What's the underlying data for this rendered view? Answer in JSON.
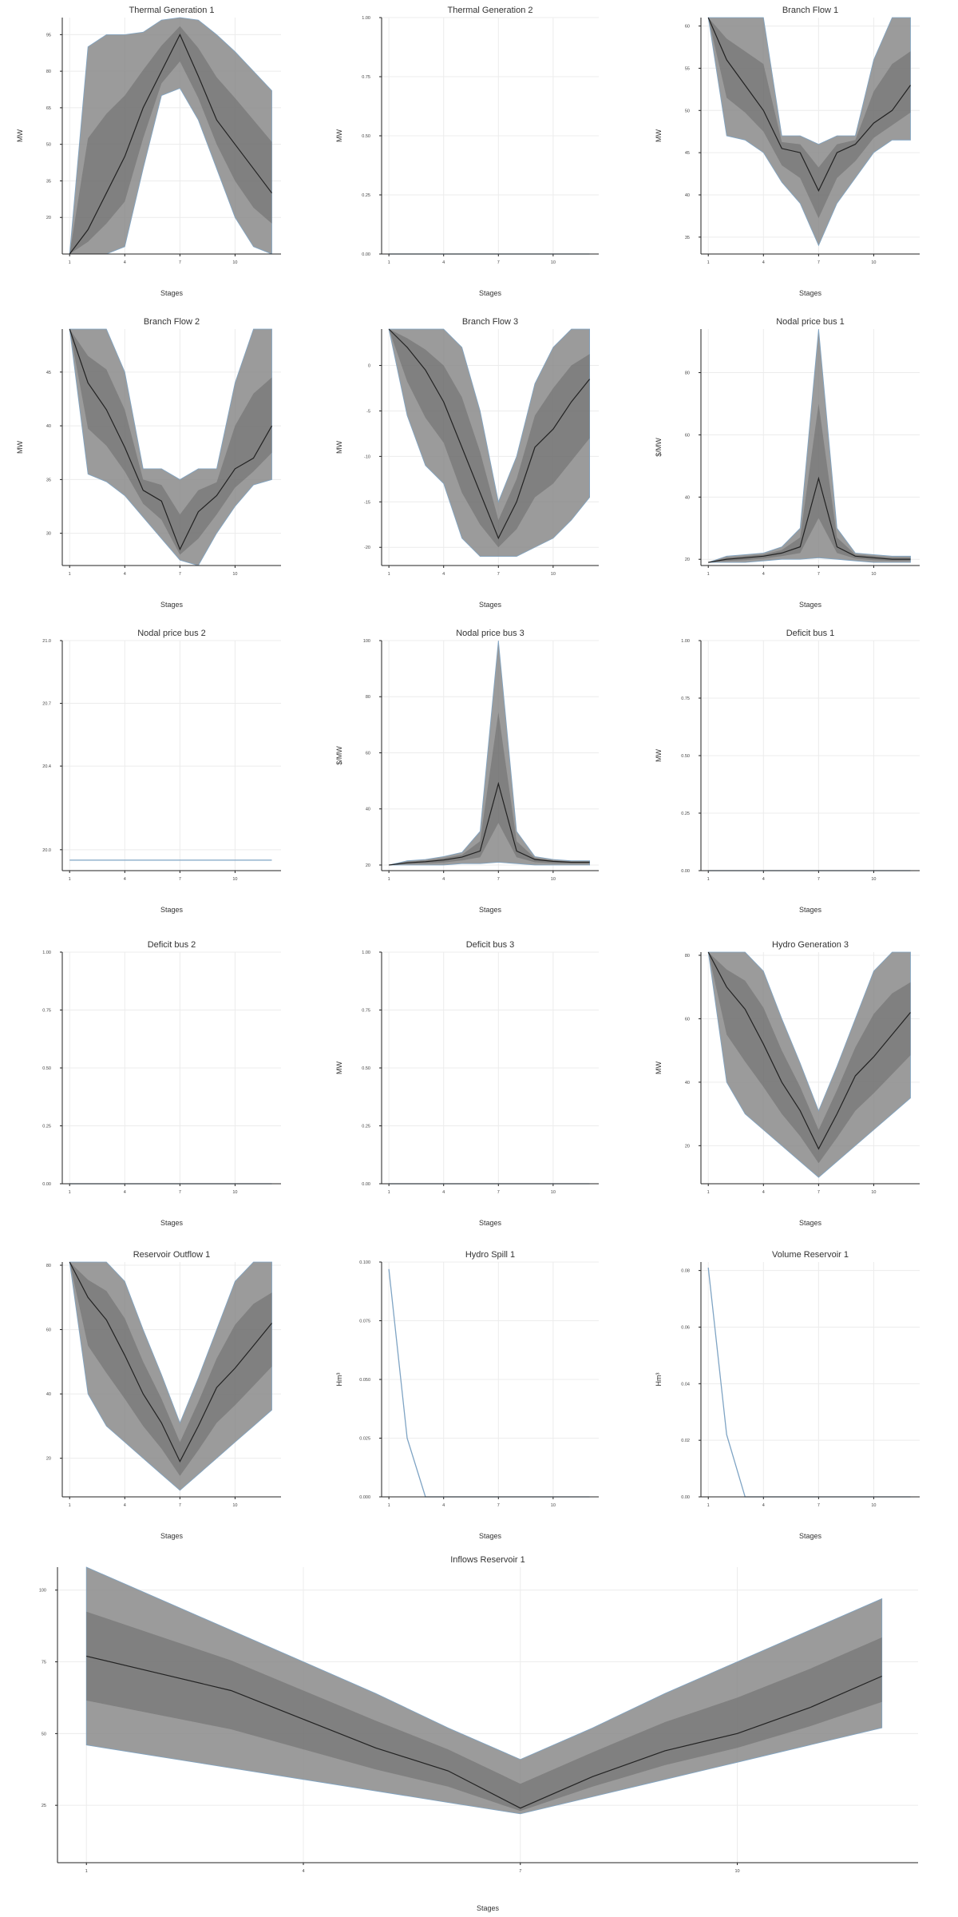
{
  "chart_data": [
    {
      "type": "area",
      "title": "Thermal Generation 1",
      "xlabel": "Stages",
      "ylabel": "MW",
      "x": [
        1,
        2,
        3,
        4,
        5,
        6,
        7,
        8,
        9,
        10,
        11,
        12
      ],
      "xticks": [
        1,
        4,
        7,
        10
      ],
      "yticks": [
        20,
        35,
        50,
        65,
        80,
        95
      ],
      "ylim": [
        5,
        102
      ],
      "series": [
        {
          "name": "upper",
          "values": [
            5,
            90,
            95,
            95,
            96,
            101,
            102,
            101,
            95,
            88,
            80,
            72
          ]
        },
        {
          "name": "mean",
          "values": [
            5,
            15,
            30,
            45,
            65,
            80,
            95,
            78,
            60,
            50,
            40,
            30
          ]
        },
        {
          "name": "lower",
          "values": [
            5,
            5,
            5,
            8,
            40,
            70,
            73,
            60,
            40,
            20,
            8,
            5
          ]
        }
      ]
    },
    {
      "type": "line",
      "title": "Thermal Generation 2",
      "xlabel": "Stages",
      "ylabel": "MW",
      "x": [
        1,
        12
      ],
      "xticks": [
        1,
        4,
        7,
        10
      ],
      "yticks": [
        "0.00",
        "0.25",
        "0.50",
        "0.75",
        "1.00"
      ],
      "ylim": [
        0,
        1
      ],
      "series": [
        {
          "name": "value",
          "values": [
            0,
            0
          ]
        }
      ]
    },
    {
      "type": "area",
      "title": "Branch Flow 1",
      "xlabel": "Stages",
      "ylabel": "MW",
      "x": [
        1,
        2,
        3,
        4,
        5,
        6,
        7,
        8,
        9,
        10,
        11,
        12
      ],
      "xticks": [
        1,
        4,
        7,
        10
      ],
      "yticks": [
        35,
        40,
        45,
        50,
        55,
        60
      ],
      "ylim": [
        33,
        61
      ],
      "series": [
        {
          "name": "upper",
          "values": [
            61,
            61,
            61,
            61,
            47,
            47,
            46,
            47,
            47,
            56,
            61,
            61
          ]
        },
        {
          "name": "mean",
          "values": [
            61,
            56,
            53,
            50,
            45.5,
            45,
            40.5,
            45,
            46,
            48.5,
            50,
            53
          ]
        },
        {
          "name": "lower",
          "values": [
            61,
            47,
            46.5,
            45,
            41.5,
            39,
            34,
            39,
            42,
            45,
            46.5,
            46.5
          ]
        }
      ]
    },
    {
      "type": "area",
      "title": "Branch Flow 2",
      "xlabel": "Stages",
      "ylabel": "MW",
      "x": [
        1,
        2,
        3,
        4,
        5,
        6,
        7,
        8,
        9,
        10,
        11,
        12
      ],
      "xticks": [
        1,
        4,
        7,
        10
      ],
      "yticks": [
        30,
        35,
        40,
        45
      ],
      "ylim": [
        27,
        49
      ],
      "series": [
        {
          "name": "upper",
          "values": [
            49,
            49,
            49,
            45,
            36,
            36,
            35,
            36,
            36,
            44,
            49,
            49
          ]
        },
        {
          "name": "mean",
          "values": [
            49,
            44,
            41.5,
            38,
            34,
            33,
            28.5,
            32,
            33.5,
            36,
            37,
            40
          ]
        },
        {
          "name": "lower",
          "values": [
            49,
            35.5,
            34.8,
            33.5,
            31.5,
            29.5,
            27.5,
            27,
            30,
            32.5,
            34.5,
            35
          ]
        }
      ]
    },
    {
      "type": "area",
      "title": "Branch Flow 3",
      "xlabel": "Stages",
      "ylabel": "MW",
      "x": [
        1,
        2,
        3,
        4,
        5,
        6,
        7,
        8,
        9,
        10,
        11,
        12
      ],
      "xticks": [
        1,
        4,
        7,
        10
      ],
      "yticks": [
        -20,
        -15,
        -10,
        -5,
        0
      ],
      "ylim": [
        -22,
        4
      ],
      "series": [
        {
          "name": "upper",
          "values": [
            4,
            4,
            4,
            4,
            2,
            -5,
            -15,
            -10,
            -2,
            2,
            4,
            4
          ]
        },
        {
          "name": "mean",
          "values": [
            4,
            2,
            -0.5,
            -4,
            -9,
            -14,
            -19,
            -15,
            -9,
            -7,
            -4,
            -1.5
          ]
        },
        {
          "name": "lower",
          "values": [
            4,
            -5.5,
            -11,
            -13,
            -19,
            -21,
            -21,
            -21,
            -20,
            -19,
            -17,
            -14.5
          ]
        }
      ]
    },
    {
      "type": "area",
      "title": "Nodal price bus 1",
      "xlabel": "Stages",
      "ylabel": "$/MW",
      "x": [
        1,
        2,
        3,
        4,
        5,
        6,
        7,
        8,
        9,
        10,
        11,
        12
      ],
      "xticks": [
        1,
        4,
        7,
        10
      ],
      "yticks": [
        20,
        40,
        60,
        80
      ],
      "ylim": [
        18,
        94
      ],
      "series": [
        {
          "name": "upper",
          "values": [
            19,
            21,
            21.5,
            22,
            24,
            30,
            94,
            30,
            22,
            21.5,
            21,
            21
          ]
        },
        {
          "name": "mean",
          "values": [
            19,
            20,
            20.5,
            21,
            22,
            24,
            46,
            24,
            21,
            20.5,
            20,
            20
          ]
        },
        {
          "name": "lower",
          "values": [
            19,
            19,
            19,
            19.5,
            20,
            20,
            20.5,
            20,
            19.5,
            19,
            19,
            19
          ]
        }
      ]
    },
    {
      "type": "line",
      "title": "Nodal price bus 2",
      "xlabel": "Stages",
      "ylabel": "",
      "x": [
        1,
        12
      ],
      "xticks": [
        1,
        4,
        7,
        10
      ],
      "yticks": [
        "20.0",
        "20.4",
        "20.7",
        "21.0"
      ],
      "ylim": [
        19.9,
        21.0
      ],
      "series": [
        {
          "name": "value",
          "values": [
            19.95,
            19.95
          ]
        }
      ]
    },
    {
      "type": "area",
      "title": "Nodal price bus 3",
      "xlabel": "Stages",
      "ylabel": "$/MW",
      "x": [
        1,
        2,
        3,
        4,
        5,
        6,
        7,
        8,
        9,
        10,
        11,
        12
      ],
      "xticks": [
        1,
        4,
        7,
        10
      ],
      "yticks": [
        20,
        40,
        60,
        80,
        100
      ],
      "ylim": [
        18,
        100
      ],
      "series": [
        {
          "name": "upper",
          "values": [
            20,
            21.5,
            22,
            23,
            24.5,
            32,
            100,
            32,
            23,
            22,
            21.5,
            21.5
          ]
        },
        {
          "name": "mean",
          "values": [
            20,
            20.8,
            21.2,
            21.8,
            22.8,
            25,
            49,
            25,
            22,
            21.3,
            21,
            21
          ]
        },
        {
          "name": "lower",
          "values": [
            20,
            20,
            20,
            20,
            20.5,
            20.5,
            21,
            20.5,
            20,
            20,
            20,
            20
          ]
        }
      ]
    },
    {
      "type": "line",
      "title": "Deficit bus 1",
      "xlabel": "Stages",
      "ylabel": "MW",
      "x": [
        1,
        12
      ],
      "xticks": [
        1,
        4,
        7,
        10
      ],
      "yticks": [
        "0.00",
        "0.25",
        "0.50",
        "0.75",
        "1.00"
      ],
      "ylim": [
        0,
        1
      ],
      "series": [
        {
          "name": "value",
          "values": [
            0,
            0
          ]
        }
      ]
    },
    {
      "type": "line",
      "title": "Deficit bus 2",
      "xlabel": "Stages",
      "ylabel": "",
      "x": [
        1,
        12
      ],
      "xticks": [
        1,
        4,
        7,
        10
      ],
      "yticks": [
        "0.00",
        "0.25",
        "0.50",
        "0.75",
        "1.00"
      ],
      "ylim": [
        0,
        1
      ],
      "series": [
        {
          "name": "value",
          "values": [
            0,
            0
          ]
        }
      ]
    },
    {
      "type": "line",
      "title": "Deficit bus 3",
      "xlabel": "Stages",
      "ylabel": "MW",
      "x": [
        1,
        12
      ],
      "xticks": [
        1,
        4,
        7,
        10
      ],
      "yticks": [
        "0.00",
        "0.25",
        "0.50",
        "0.75",
        "1.00"
      ],
      "ylim": [
        0,
        1
      ],
      "series": [
        {
          "name": "value",
          "values": [
            0,
            0
          ]
        }
      ]
    },
    {
      "type": "area",
      "title": "Hydro Generation 3",
      "xlabel": "Stages",
      "ylabel": "MW",
      "x": [
        1,
        2,
        3,
        4,
        5,
        6,
        7,
        8,
        9,
        10,
        11,
        12
      ],
      "xticks": [
        1,
        4,
        7,
        10
      ],
      "yticks": [
        20,
        40,
        60,
        80
      ],
      "ylim": [
        8,
        81
      ],
      "series": [
        {
          "name": "upper",
          "values": [
            81,
            81,
            81,
            75,
            60,
            46,
            31,
            45,
            60,
            75,
            81,
            81
          ]
        },
        {
          "name": "mean",
          "values": [
            81,
            70,
            63,
            52,
            40,
            31,
            19,
            30,
            42,
            48,
            55,
            62
          ]
        },
        {
          "name": "lower",
          "values": [
            81,
            40,
            30,
            25,
            20,
            15,
            10,
            15,
            20,
            25,
            30,
            35
          ]
        }
      ]
    },
    {
      "type": "area",
      "title": "Reservoir Outflow 1",
      "xlabel": "Stages",
      "ylabel": "",
      "x": [
        1,
        2,
        3,
        4,
        5,
        6,
        7,
        8,
        9,
        10,
        11,
        12
      ],
      "xticks": [
        1,
        4,
        7,
        10
      ],
      "yticks": [
        20,
        40,
        60,
        80
      ],
      "ylim": [
        8,
        81
      ],
      "series": [
        {
          "name": "upper",
          "values": [
            81,
            81,
            81,
            75,
            60,
            46,
            31,
            45,
            60,
            75,
            81,
            81
          ]
        },
        {
          "name": "mean",
          "values": [
            81,
            70,
            63,
            52,
            40,
            31,
            19,
            30,
            42,
            48,
            55,
            62
          ]
        },
        {
          "name": "lower",
          "values": [
            81,
            40,
            30,
            25,
            20,
            15,
            10,
            15,
            20,
            25,
            30,
            35
          ]
        }
      ]
    },
    {
      "type": "line",
      "title": "Hydro Spill 1",
      "xlabel": "Stages",
      "ylabel": "Hm³",
      "x": [
        1,
        2,
        3,
        4,
        5,
        6,
        7,
        8,
        9,
        10,
        11,
        12
      ],
      "xticks": [
        1,
        4,
        7,
        10
      ],
      "yticks": [
        "0.000",
        "0.025",
        "0.050",
        "0.075",
        "0.100"
      ],
      "ylim": [
        0,
        0.1
      ],
      "series": [
        {
          "name": "value",
          "values": [
            0.097,
            0.025,
            0,
            0,
            0,
            0,
            0,
            0,
            0,
            0,
            0,
            0
          ]
        }
      ]
    },
    {
      "type": "line",
      "title": "Volume Reservoir 1",
      "xlabel": "Stages",
      "ylabel": "Hm³",
      "x": [
        1,
        2,
        3,
        4,
        5,
        6,
        7,
        8,
        9,
        10,
        11,
        12
      ],
      "xticks": [
        1,
        4,
        7,
        10
      ],
      "yticks": [
        "0.00",
        "0.02",
        "0.04",
        "0.06",
        "0.08"
      ],
      "ylim": [
        0,
        0.083
      ],
      "series": [
        {
          "name": "value",
          "values": [
            0.081,
            0.022,
            0,
            0,
            0,
            0,
            0,
            0,
            0,
            0,
            0,
            0
          ]
        }
      ]
    },
    {
      "type": "area",
      "title": "Inflows Reservoir 1",
      "xlabel": "Stages",
      "ylabel": "",
      "x": [
        1,
        2,
        3,
        4,
        5,
        6,
        7,
        8,
        9,
        10,
        11,
        12
      ],
      "xticks": [
        1,
        4,
        7,
        10
      ],
      "yticks": [
        25,
        50,
        75,
        100
      ],
      "ylim": [
        5,
        108
      ],
      "series": [
        {
          "name": "upper",
          "values": [
            108,
            97,
            86,
            75,
            64,
            52,
            41,
            52,
            64,
            75,
            86,
            97
          ]
        },
        {
          "name": "mean",
          "values": [
            77,
            71,
            65,
            55,
            45,
            37,
            24,
            35,
            44,
            50,
            59,
            70
          ]
        },
        {
          "name": "lower",
          "values": [
            46,
            42,
            38,
            34,
            30,
            26,
            22,
            28,
            34,
            40,
            46,
            52
          ]
        }
      ]
    }
  ]
}
